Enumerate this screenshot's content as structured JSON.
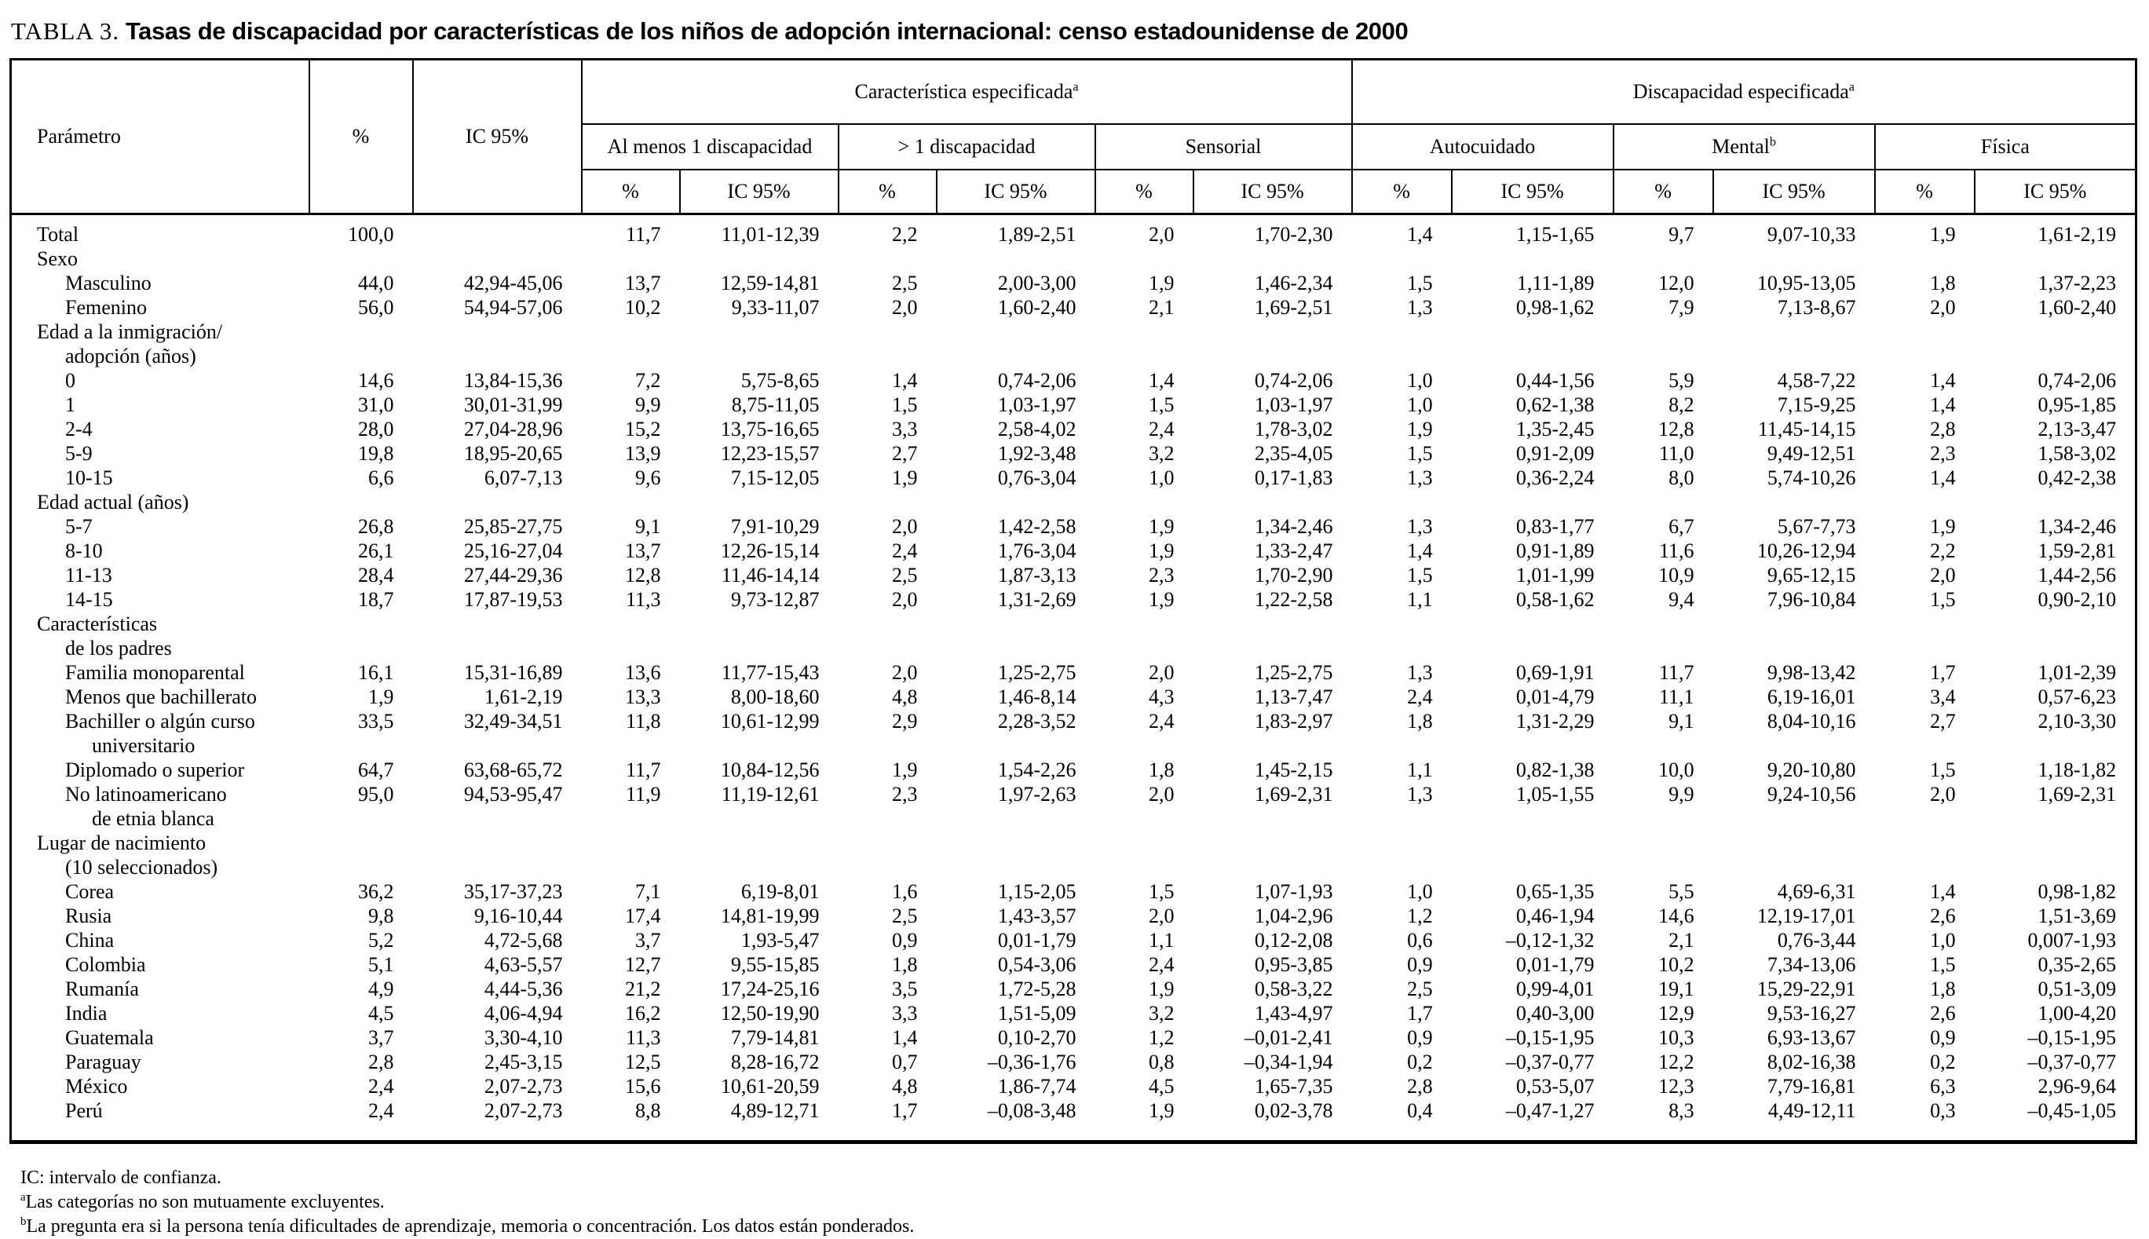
{
  "title": {
    "label": "TABLA 3.",
    "text": "Tasas de discapacidad por características de los niños de adopción internacional: censo estadounidense de 2000"
  },
  "table": {
    "header": {
      "parametro": "Parámetro",
      "pct": "%",
      "ic": "IC 95%",
      "group1": {
        "label": "Característica especificada",
        "sup": "a"
      },
      "group2": {
        "label": "Discapacidad especificada",
        "sup": "a"
      },
      "subgroups": [
        {
          "label": "Al menos 1 discapacidad",
          "sup": ""
        },
        {
          "label": "> 1 discapacidad",
          "sup": ""
        },
        {
          "label": "Sensorial",
          "sup": ""
        },
        {
          "label": "Autocuidado",
          "sup": ""
        },
        {
          "label": "Mental",
          "sup": "b"
        },
        {
          "label": "Física",
          "sup": ""
        }
      ],
      "sub_pct": "%",
      "sub_ic": "IC 95%"
    },
    "rows": [
      {
        "lines": [
          [
            "Total",
            0
          ]
        ],
        "cells": [
          "100,0",
          "",
          "11,7",
          "11,01-12,39",
          "2,2",
          "1,89-2,51",
          "2,0",
          "1,70-2,30",
          "1,4",
          "1,15-1,65",
          "9,7",
          "9,07-10,33",
          "1,9",
          "1,61-2,19"
        ]
      },
      {
        "lines": [
          [
            "Sexo",
            0
          ]
        ],
        "cells": []
      },
      {
        "lines": [
          [
            "Masculino",
            1
          ]
        ],
        "cells": [
          "44,0",
          "42,94-45,06",
          "13,7",
          "12,59-14,81",
          "2,5",
          "2,00-3,00",
          "1,9",
          "1,46-2,34",
          "1,5",
          "1,11-1,89",
          "12,0",
          "10,95-13,05",
          "1,8",
          "1,37-2,23"
        ]
      },
      {
        "lines": [
          [
            "Femenino",
            1
          ]
        ],
        "cells": [
          "56,0",
          "54,94-57,06",
          "10,2",
          "9,33-11,07",
          "2,0",
          "1,60-2,40",
          "2,1",
          "1,69-2,51",
          "1,3",
          "0,98-1,62",
          "7,9",
          "7,13-8,67",
          "2,0",
          "1,60-2,40"
        ]
      },
      {
        "lines": [
          [
            "Edad a la inmigración/",
            0
          ],
          [
            "adopción (años)",
            1
          ]
        ],
        "cells": []
      },
      {
        "lines": [
          [
            "0",
            1
          ]
        ],
        "cells": [
          "14,6",
          "13,84-15,36",
          "7,2",
          "5,75-8,65",
          "1,4",
          "0,74-2,06",
          "1,4",
          "0,74-2,06",
          "1,0",
          "0,44-1,56",
          "5,9",
          "4,58-7,22",
          "1,4",
          "0,74-2,06"
        ]
      },
      {
        "lines": [
          [
            "1",
            1
          ]
        ],
        "cells": [
          "31,0",
          "30,01-31,99",
          "9,9",
          "8,75-11,05",
          "1,5",
          "1,03-1,97",
          "1,5",
          "1,03-1,97",
          "1,0",
          "0,62-1,38",
          "8,2",
          "7,15-9,25",
          "1,4",
          "0,95-1,85"
        ]
      },
      {
        "lines": [
          [
            "2-4",
            1
          ]
        ],
        "cells": [
          "28,0",
          "27,04-28,96",
          "15,2",
          "13,75-16,65",
          "3,3",
          "2,58-4,02",
          "2,4",
          "1,78-3,02",
          "1,9",
          "1,35-2,45",
          "12,8",
          "11,45-14,15",
          "2,8",
          "2,13-3,47"
        ]
      },
      {
        "lines": [
          [
            "5-9",
            1
          ]
        ],
        "cells": [
          "19,8",
          "18,95-20,65",
          "13,9",
          "12,23-15,57",
          "2,7",
          "1,92-3,48",
          "3,2",
          "2,35-4,05",
          "1,5",
          "0,91-2,09",
          "11,0",
          "9,49-12,51",
          "2,3",
          "1,58-3,02"
        ]
      },
      {
        "lines": [
          [
            "10-15",
            1
          ]
        ],
        "cells": [
          "6,6",
          "6,07-7,13",
          "9,6",
          "7,15-12,05",
          "1,9",
          "0,76-3,04",
          "1,0",
          "0,17-1,83",
          "1,3",
          "0,36-2,24",
          "8,0",
          "5,74-10,26",
          "1,4",
          "0,42-2,38"
        ]
      },
      {
        "lines": [
          [
            "Edad actual (años)",
            0
          ]
        ],
        "cells": []
      },
      {
        "lines": [
          [
            "5-7",
            1
          ]
        ],
        "cells": [
          "26,8",
          "25,85-27,75",
          "9,1",
          "7,91-10,29",
          "2,0",
          "1,42-2,58",
          "1,9",
          "1,34-2,46",
          "1,3",
          "0,83-1,77",
          "6,7",
          "5,67-7,73",
          "1,9",
          "1,34-2,46"
        ]
      },
      {
        "lines": [
          [
            "8-10",
            1
          ]
        ],
        "cells": [
          "26,1",
          "25,16-27,04",
          "13,7",
          "12,26-15,14",
          "2,4",
          "1,76-3,04",
          "1,9",
          "1,33-2,47",
          "1,4",
          "0,91-1,89",
          "11,6",
          "10,26-12,94",
          "2,2",
          "1,59-2,81"
        ]
      },
      {
        "lines": [
          [
            "11-13",
            1
          ]
        ],
        "cells": [
          "28,4",
          "27,44-29,36",
          "12,8",
          "11,46-14,14",
          "2,5",
          "1,87-3,13",
          "2,3",
          "1,70-2,90",
          "1,5",
          "1,01-1,99",
          "10,9",
          "9,65-12,15",
          "2,0",
          "1,44-2,56"
        ]
      },
      {
        "lines": [
          [
            "14-15",
            1
          ]
        ],
        "cells": [
          "18,7",
          "17,87-19,53",
          "11,3",
          "9,73-12,87",
          "2,0",
          "1,31-2,69",
          "1,9",
          "1,22-2,58",
          "1,1",
          "0,58-1,62",
          "9,4",
          "7,96-10,84",
          "1,5",
          "0,90-2,10"
        ]
      },
      {
        "lines": [
          [
            "Características",
            0
          ],
          [
            "de los padres",
            1
          ]
        ],
        "cells": []
      },
      {
        "lines": [
          [
            "Familia monoparental",
            1
          ]
        ],
        "cells": [
          "16,1",
          "15,31-16,89",
          "13,6",
          "11,77-15,43",
          "2,0",
          "1,25-2,75",
          "2,0",
          "1,25-2,75",
          "1,3",
          "0,69-1,91",
          "11,7",
          "9,98-13,42",
          "1,7",
          "1,01-2,39"
        ]
      },
      {
        "lines": [
          [
            "Menos que bachillerato",
            1
          ]
        ],
        "cells": [
          "1,9",
          "1,61-2,19",
          "13,3",
          "8,00-18,60",
          "4,8",
          "1,46-8,14",
          "4,3",
          "1,13-7,47",
          "2,4",
          "0,01-4,79",
          "11,1",
          "6,19-16,01",
          "3,4",
          "0,57-6,23"
        ]
      },
      {
        "lines": [
          [
            "Bachiller o algún curso",
            1
          ],
          [
            "universitario",
            2
          ]
        ],
        "cells": [
          "33,5",
          "32,49-34,51",
          "11,8",
          "10,61-12,99",
          "2,9",
          "2,28-3,52",
          "2,4",
          "1,83-2,97",
          "1,8",
          "1,31-2,29",
          "9,1",
          "8,04-10,16",
          "2,7",
          "2,10-3,30"
        ]
      },
      {
        "lines": [
          [
            "Diplomado o superior",
            1
          ]
        ],
        "cells": [
          "64,7",
          "63,68-65,72",
          "11,7",
          "10,84-12,56",
          "1,9",
          "1,54-2,26",
          "1,8",
          "1,45-2,15",
          "1,1",
          "0,82-1,38",
          "10,0",
          "9,20-10,80",
          "1,5",
          "1,18-1,82"
        ]
      },
      {
        "lines": [
          [
            "No latinoamericano",
            1
          ],
          [
            "de etnia blanca",
            2
          ]
        ],
        "cells": [
          "95,0",
          "94,53-95,47",
          "11,9",
          "11,19-12,61",
          "2,3",
          "1,97-2,63",
          "2,0",
          "1,69-2,31",
          "1,3",
          "1,05-1,55",
          "9,9",
          "9,24-10,56",
          "2,0",
          "1,69-2,31"
        ]
      },
      {
        "lines": [
          [
            "Lugar de nacimiento",
            0
          ],
          [
            "(10 seleccionados)",
            1
          ]
        ],
        "cells": []
      },
      {
        "lines": [
          [
            "Corea",
            1
          ]
        ],
        "cells": [
          "36,2",
          "35,17-37,23",
          "7,1",
          "6,19-8,01",
          "1,6",
          "1,15-2,05",
          "1,5",
          "1,07-1,93",
          "1,0",
          "0,65-1,35",
          "5,5",
          "4,69-6,31",
          "1,4",
          "0,98-1,82"
        ]
      },
      {
        "lines": [
          [
            "Rusia",
            1
          ]
        ],
        "cells": [
          "9,8",
          "9,16-10,44",
          "17,4",
          "14,81-19,99",
          "2,5",
          "1,43-3,57",
          "2,0",
          "1,04-2,96",
          "1,2",
          "0,46-1,94",
          "14,6",
          "12,19-17,01",
          "2,6",
          "1,51-3,69"
        ]
      },
      {
        "lines": [
          [
            "China",
            1
          ]
        ],
        "cells": [
          "5,2",
          "4,72-5,68",
          "3,7",
          "1,93-5,47",
          "0,9",
          "0,01-1,79",
          "1,1",
          "0,12-2,08",
          "0,6",
          "–0,12-1,32",
          "2,1",
          "0,76-3,44",
          "1,0",
          "0,007-1,93"
        ]
      },
      {
        "lines": [
          [
            "Colombia",
            1
          ]
        ],
        "cells": [
          "5,1",
          "4,63-5,57",
          "12,7",
          "9,55-15,85",
          "1,8",
          "0,54-3,06",
          "2,4",
          "0,95-3,85",
          "0,9",
          "0,01-1,79",
          "10,2",
          "7,34-13,06",
          "1,5",
          "0,35-2,65"
        ]
      },
      {
        "lines": [
          [
            "Rumanía",
            1
          ]
        ],
        "cells": [
          "4,9",
          "4,44-5,36",
          "21,2",
          "17,24-25,16",
          "3,5",
          "1,72-5,28",
          "1,9",
          "0,58-3,22",
          "2,5",
          "0,99-4,01",
          "19,1",
          "15,29-22,91",
          "1,8",
          "0,51-3,09"
        ]
      },
      {
        "lines": [
          [
            "India",
            1
          ]
        ],
        "cells": [
          "4,5",
          "4,06-4,94",
          "16,2",
          "12,50-19,90",
          "3,3",
          "1,51-5,09",
          "3,2",
          "1,43-4,97",
          "1,7",
          "0,40-3,00",
          "12,9",
          "9,53-16,27",
          "2,6",
          "1,00-4,20"
        ]
      },
      {
        "lines": [
          [
            "Guatemala",
            1
          ]
        ],
        "cells": [
          "3,7",
          "3,30-4,10",
          "11,3",
          "7,79-14,81",
          "1,4",
          "0,10-2,70",
          "1,2",
          "–0,01-2,41",
          "0,9",
          "–0,15-1,95",
          "10,3",
          "6,93-13,67",
          "0,9",
          "–0,15-1,95"
        ]
      },
      {
        "lines": [
          [
            "Paraguay",
            1
          ]
        ],
        "cells": [
          "2,8",
          "2,45-3,15",
          "12,5",
          "8,28-16,72",
          "0,7",
          "–0,36-1,76",
          "0,8",
          "–0,34-1,94",
          "0,2",
          "–0,37-0,77",
          "12,2",
          "8,02-16,38",
          "0,2",
          "–0,37-0,77"
        ]
      },
      {
        "lines": [
          [
            "México",
            1
          ]
        ],
        "cells": [
          "2,4",
          "2,07-2,73",
          "15,6",
          "10,61-20,59",
          "4,8",
          "1,86-7,74",
          "4,5",
          "1,65-7,35",
          "2,8",
          "0,53-5,07",
          "12,3",
          "7,79-16,81",
          "6,3",
          "2,96-9,64"
        ]
      },
      {
        "lines": [
          [
            "Perú",
            1
          ]
        ],
        "cells": [
          "2,4",
          "2,07-2,73",
          "8,8",
          "4,89-12,71",
          "1,7",
          "–0,08-3,48",
          "1,9",
          "0,02-3,78",
          "0,4",
          "–0,47-1,27",
          "8,3",
          "4,49-12,11",
          "0,3",
          "–0,45-1,05"
        ]
      }
    ]
  },
  "footnotes": [
    {
      "sup": "",
      "text": "IC: intervalo de confianza."
    },
    {
      "sup": "a",
      "text": "Las categorías no son mutuamente excluyentes."
    },
    {
      "sup": "b",
      "text": "La pregunta era si la persona tenía dificultades de aprendizaje, memoria o concentración. Los datos están ponderados."
    }
  ]
}
